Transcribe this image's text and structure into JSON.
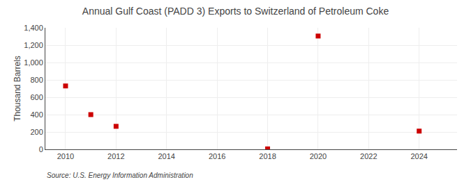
{
  "chart_data": {
    "type": "scatter",
    "title": "Annual Gulf Coast (PADD 3) Exports to Switzerland of Petroleum Coke",
    "ylabel": "Thousand Barrels",
    "annotations": [
      "Source: U.S. Energy Information Administration"
    ],
    "x": [
      2010,
      2011,
      2012,
      2018,
      2020,
      2024
    ],
    "values": [
      730,
      400,
      265,
      5,
      1305,
      210
    ],
    "color": "#cc0000",
    "marker": "square",
    "xlim": [
      2009.2,
      2025.5
    ],
    "xticks": [
      2010,
      2012,
      2014,
      2016,
      2018,
      2020,
      2022,
      2024
    ],
    "ylim": [
      0,
      1400
    ],
    "yticks": [
      0,
      200,
      400,
      600,
      800,
      {
        "value": 1000,
        "label": "1,000"
      },
      {
        "value": 1200,
        "label": "1,200"
      },
      {
        "value": 1400,
        "label": "1,400"
      }
    ],
    "grid": true
  }
}
